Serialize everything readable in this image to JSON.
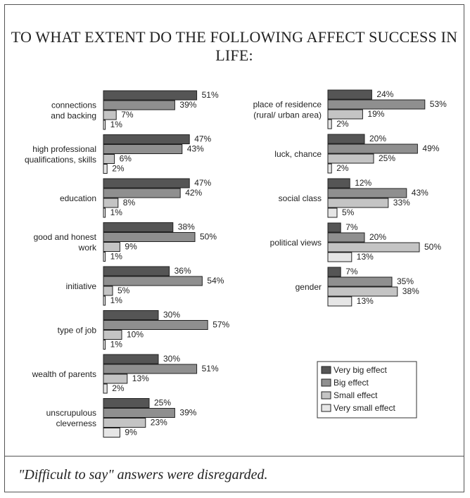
{
  "title": "TO WHAT EXTENT DO THE FOLLOWING AFFECT SUCCESS IN LIFE:",
  "footnote": "\"Difficult to say\" answers were disregarded.",
  "colors": {
    "very_big": "#555555",
    "big": "#8f8f8f",
    "small": "#c4c4c4",
    "very_small": "#e6e6e6",
    "stroke": "#222222"
  },
  "chart_data": [
    {
      "type": "bar",
      "orientation": "horizontal",
      "title": "",
      "xlabel": "",
      "ylabel": "",
      "xlim": [
        0,
        60
      ],
      "grid": false,
      "value_suffix": "%",
      "categories": [
        [
          "connections",
          "and backing"
        ],
        [
          "high professional",
          "qualifications, skills"
        ],
        [
          "education"
        ],
        [
          "good and honest",
          "work"
        ],
        [
          "initiative"
        ],
        [
          "type of job"
        ],
        [
          "wealth of parents"
        ],
        [
          "unscrupulous",
          "cleverness"
        ]
      ],
      "series": [
        {
          "name": "Very big effect",
          "values": [
            51,
            47,
            47,
            38,
            36,
            30,
            30,
            25
          ]
        },
        {
          "name": "Big effect",
          "values": [
            39,
            43,
            42,
            50,
            54,
            57,
            51,
            39
          ]
        },
        {
          "name": "Small effect",
          "values": [
            7,
            6,
            8,
            9,
            5,
            10,
            13,
            23
          ]
        },
        {
          "name": "Very small effect",
          "values": [
            1,
            2,
            1,
            1,
            1,
            1,
            2,
            9
          ]
        }
      ]
    },
    {
      "type": "bar",
      "orientation": "horizontal",
      "title": "",
      "xlabel": "",
      "ylabel": "",
      "xlim": [
        0,
        60
      ],
      "grid": false,
      "value_suffix": "%",
      "categories": [
        [
          "place of residence",
          "(rural/ urban area)"
        ],
        [
          "luck, chance"
        ],
        [
          "social class"
        ],
        [
          "political views"
        ],
        [
          "gender"
        ]
      ],
      "series": [
        {
          "name": "Very big effect",
          "values": [
            24,
            20,
            12,
            7,
            7
          ]
        },
        {
          "name": "Big effect",
          "values": [
            53,
            49,
            43,
            20,
            35
          ]
        },
        {
          "name": "Small effect",
          "values": [
            19,
            25,
            33,
            50,
            38
          ]
        },
        {
          "name": "Very small effect",
          "values": [
            2,
            2,
            5,
            13,
            13
          ]
        }
      ]
    }
  ],
  "legend": {
    "placement": "bottom-right",
    "items": [
      {
        "label": "Very big effect"
      },
      {
        "label": "Big effect"
      },
      {
        "label": "Small effect"
      },
      {
        "label": "Very small effect"
      }
    ]
  }
}
